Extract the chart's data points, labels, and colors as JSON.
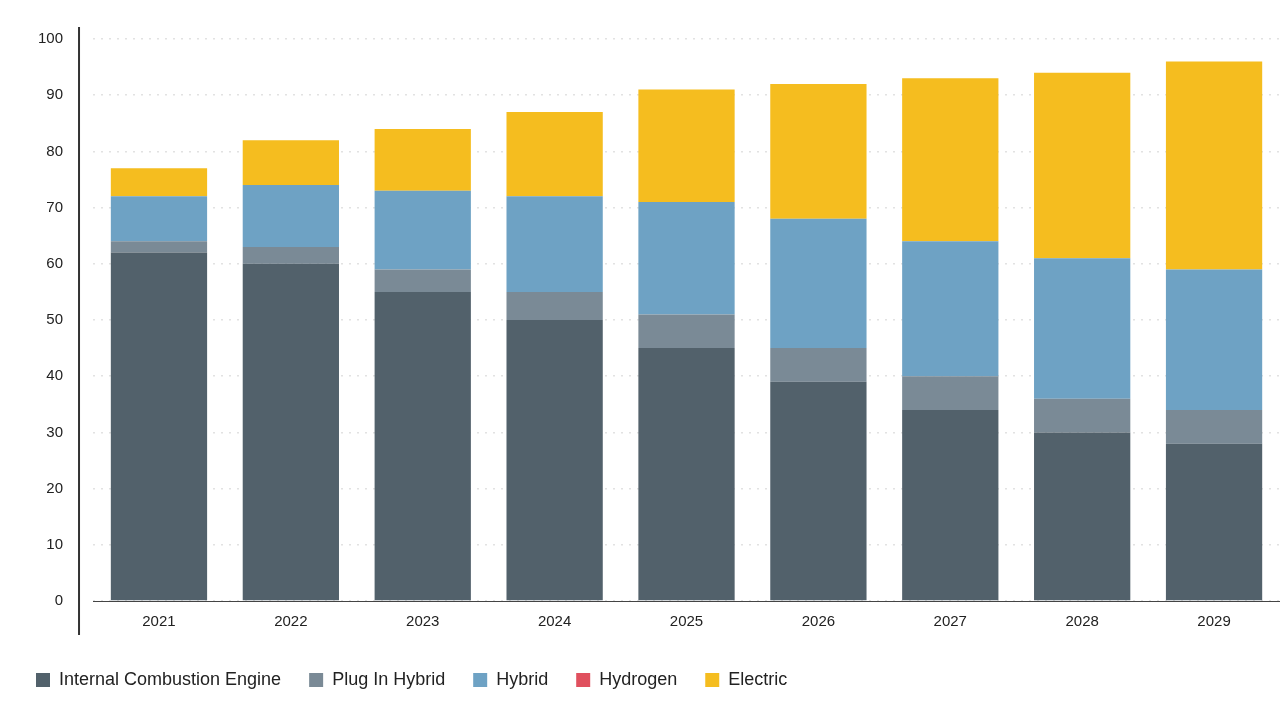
{
  "chart_data": {
    "type": "bar",
    "stacked": true,
    "categories": [
      "2021",
      "2022",
      "2023",
      "2024",
      "2025",
      "2026",
      "2027",
      "2028",
      "2029"
    ],
    "series": [
      {
        "name": "Internal Combustion Engine",
        "color": "#52616b",
        "values": [
          62,
          60,
          55,
          50,
          45,
          39,
          34,
          30,
          28
        ]
      },
      {
        "name": "Plug In Hybrid",
        "color": "#7a8a96",
        "values": [
          2,
          3,
          4,
          5,
          6,
          6,
          6,
          6,
          6
        ]
      },
      {
        "name": "Hybrid",
        "color": "#6ea2c4",
        "values": [
          8,
          11,
          14,
          17,
          20,
          23,
          24,
          25,
          25
        ]
      },
      {
        "name": "Hydrogen",
        "color": "#e0505e",
        "values": [
          0,
          0,
          0,
          0,
          0,
          0,
          0,
          0,
          0
        ]
      },
      {
        "name": "Electric",
        "color": "#f5bd1f",
        "values": [
          5,
          8,
          11,
          15,
          20,
          24,
          29,
          33,
          37
        ]
      }
    ],
    "ylim": [
      0,
      100
    ],
    "yticks": [
      0,
      10,
      20,
      30,
      40,
      50,
      60,
      70,
      80,
      90,
      100
    ],
    "grid": "y",
    "legend": "bottom left"
  }
}
